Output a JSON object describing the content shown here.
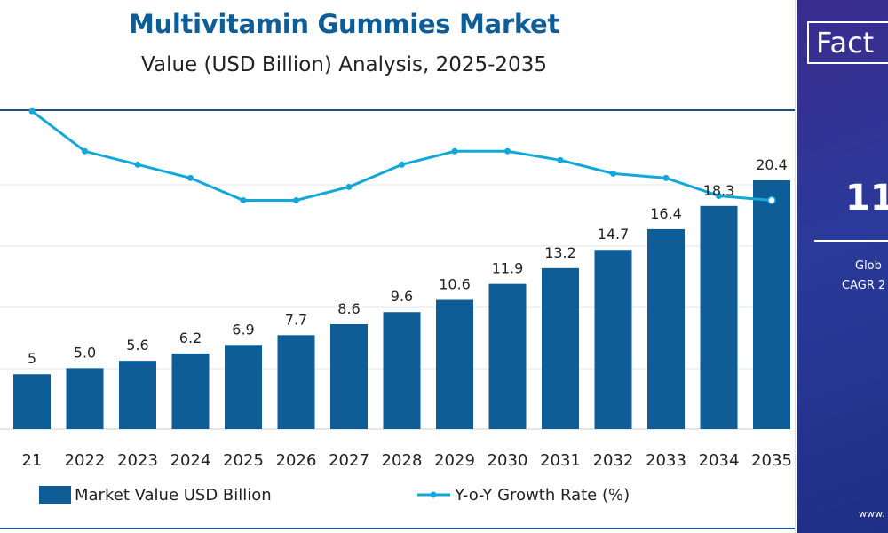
{
  "chart_data": {
    "type": "bar",
    "title": "Multivitamin Gummies Market",
    "subtitle": "Value (USD Billion) Analysis, 2025-2035",
    "categories": [
      "21",
      "2022",
      "2023",
      "2024",
      "2025",
      "2026",
      "2027",
      "2028",
      "2029",
      "2030",
      "2031",
      "2032",
      "2033",
      "2034",
      "2035"
    ],
    "series": [
      {
        "name": "Market Value USD Billion",
        "type": "bar",
        "values": [
          4.5,
          5.0,
          5.6,
          6.2,
          6.9,
          7.7,
          8.6,
          9.6,
          10.6,
          11.9,
          13.2,
          14.7,
          16.4,
          18.3,
          20.4
        ],
        "labels": [
          "5",
          "5.0",
          "5.6",
          "6.2",
          "6.9",
          "7.7",
          "8.6",
          "9.6",
          "10.6",
          "11.9",
          "13.2",
          "14.7",
          "16.4",
          "18.3",
          "20.4"
        ],
        "color": "#0f5d97"
      },
      {
        "name": "Y-o-Y Growth Rate (%)",
        "type": "line",
        "values": [
          12.5,
          11.6,
          11.3,
          11.0,
          10.5,
          10.5,
          10.8,
          11.3,
          11.6,
          11.6,
          11.4,
          11.1,
          11.0,
          10.6,
          10.5
        ],
        "color": "#14a7d9"
      }
    ],
    "ylim": [
      0,
      24
    ],
    "y2lim": [
      7.5,
      13
    ],
    "xlabel": "",
    "ylabel": "",
    "legend_position": "bottom",
    "grid": "horizontal"
  },
  "side_panel": {
    "brand": "Fact",
    "cagr_value": "11.",
    "line1": "Glob",
    "line2": "CAGR 2",
    "url": "www."
  },
  "colors": {
    "title": "#0f5d97",
    "bar": "#0f5d97",
    "line": "#14a7d9",
    "rule": "#1b4f87"
  }
}
